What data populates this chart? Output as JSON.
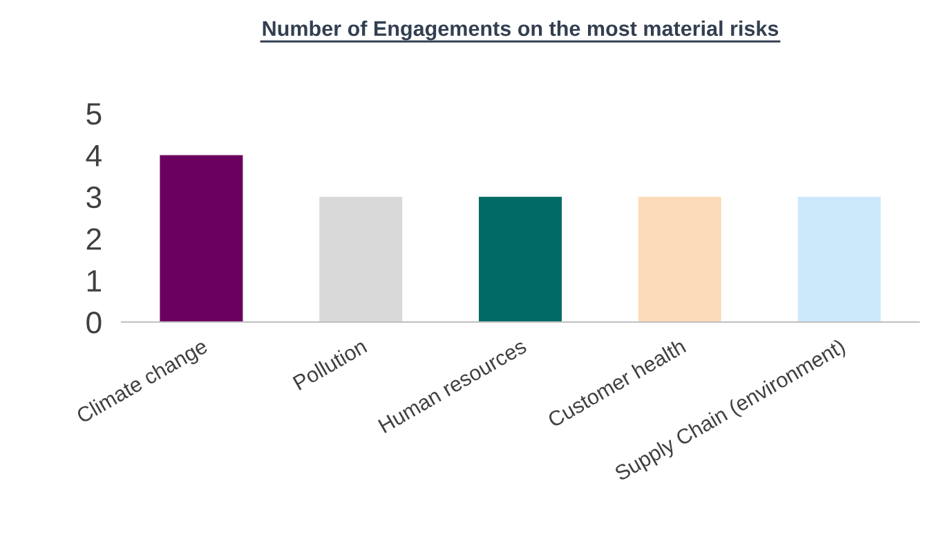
{
  "chart_data": {
    "type": "bar",
    "title": "Number of Engagements on the most material risks",
    "categories": [
      "Climate change",
      "Pollution",
      "Human resources",
      "Customer health",
      "Supply Chain (environment)"
    ],
    "values": [
      4,
      3,
      3,
      3,
      3
    ],
    "colors": [
      "#6b0060",
      "#d9d9d9",
      "#006b66",
      "#fcdcb8",
      "#cce9fb"
    ],
    "ylim": [
      0,
      5
    ],
    "yticks": [
      0,
      1,
      2,
      3,
      4,
      5
    ],
    "grid": false,
    "legend": false
  }
}
